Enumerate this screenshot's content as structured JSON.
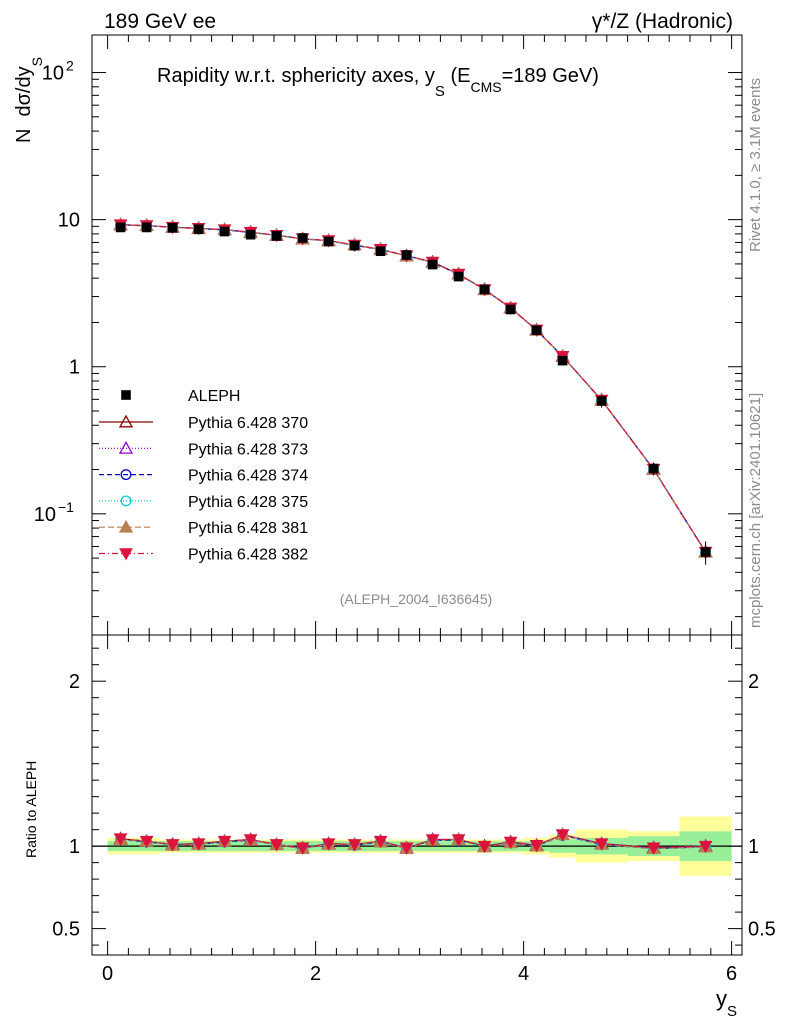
{
  "header": {
    "left": "189 GeV ee",
    "right": "γ*/Z (Hadronic)"
  },
  "side": {
    "rivet": "Rivet 4.1.0, ≥ 3.1M events",
    "site": "mcplots.cern.ch [arXiv:2401.10621]"
  },
  "chart_data": {
    "type": "line",
    "title": "Rapidity w.r.t. sphericity axes, y_S (E_CMS=189 GeV)",
    "title_parts": {
      "main": "Rapidity w.r.t. sphericity axes, y",
      "sub_s": "S",
      "open": " (E",
      "sub_cms": "CMS",
      "close": "=189 GeV)"
    },
    "watermark": "(ALEPH_2004_I636645)",
    "ylabel": {
      "n": "N",
      "main": "dσ/dy",
      "sub": "S"
    },
    "xlabel": {
      "main": "y",
      "sub": "S"
    },
    "ratio_ylabel": "Ratio to ALEPH",
    "yscale": "log",
    "xlim": [
      -0.15,
      6.1
    ],
    "ylim": [
      0.015,
      180
    ],
    "ratio_ylim": [
      0.34,
      2.28
    ],
    "x_ticks": [
      "0",
      "2",
      "4",
      "6"
    ],
    "y_ticks": [
      {
        "value": 100,
        "label": "10",
        "exp": "2"
      },
      {
        "value": 10,
        "label": "10",
        "exp": ""
      },
      {
        "value": 1,
        "label": "1",
        "exp": ""
      },
      {
        "value": 0.1,
        "label": "10",
        "exp": "−1"
      }
    ],
    "ratio_ticks": [
      {
        "value": 2,
        "label": "2"
      },
      {
        "value": 1,
        "label": "1"
      },
      {
        "value": 0.5,
        "label": "0.5"
      }
    ],
    "bin_edges": [
      0,
      0.25,
      0.5,
      0.75,
      1.0,
      1.25,
      1.5,
      1.75,
      2.0,
      2.25,
      2.5,
      2.75,
      3.0,
      3.25,
      3.5,
      3.75,
      4.0,
      4.25,
      4.5,
      5.0,
      5.5,
      6.0
    ],
    "x": [
      0.125,
      0.375,
      0.625,
      0.875,
      1.125,
      1.375,
      1.625,
      1.875,
      2.125,
      2.375,
      2.625,
      2.875,
      3.125,
      3.375,
      3.625,
      3.875,
      4.125,
      4.375,
      4.75,
      5.25,
      5.75
    ],
    "data": {
      "name": "ALEPH",
      "values": [
        8.85,
        8.85,
        8.8,
        8.6,
        8.3,
        7.9,
        7.75,
        7.5,
        7.1,
        6.65,
        6.1,
        5.75,
        4.95,
        4.1,
        3.35,
        2.45,
        1.77,
        1.1,
        0.585,
        0.203,
        0.055
      ],
      "stat_err": [
        0.03,
        0.03,
        0.03,
        0.03,
        0.03,
        0.03,
        0.03,
        0.03,
        0.03,
        0.03,
        0.03,
        0.03,
        0.03,
        0.03,
        0.03,
        0.03,
        0.03,
        0.04,
        0.05,
        0.06,
        0.09
      ],
      "total_err": [
        0.05,
        0.05,
        0.04,
        0.04,
        0.04,
        0.04,
        0.04,
        0.04,
        0.04,
        0.04,
        0.04,
        0.04,
        0.04,
        0.04,
        0.04,
        0.04,
        0.05,
        0.07,
        0.1,
        0.09,
        0.18
      ]
    },
    "series": [
      {
        "name": "Pythia 6.428 370",
        "color": "#8b0000",
        "marker": "triangle-open",
        "dash": "",
        "ratio": [
          1.045,
          1.03,
          1.01,
          1.015,
          1.03,
          1.04,
          1.01,
          0.985,
          1.015,
          1.01,
          1.03,
          0.985,
          1.04,
          1.04,
          1.0,
          1.025,
          1.005,
          1.07,
          1.015,
          0.99,
          1.0
        ]
      },
      {
        "name": "Pythia 6.428 373",
        "color": "#9400d3",
        "marker": "triangle-open",
        "dash": "1,2",
        "ratio": [
          1.04,
          1.03,
          1.01,
          1.015,
          1.03,
          1.04,
          1.01,
          0.99,
          1.015,
          1.01,
          1.03,
          0.99,
          1.04,
          1.04,
          1.0,
          1.025,
          1.005,
          1.07,
          1.015,
          0.99,
          1.0
        ]
      },
      {
        "name": "Pythia 6.428 374",
        "color": "#0000cd",
        "marker": "circle-open",
        "dash": "5,3",
        "ratio": [
          1.04,
          1.025,
          1.01,
          1.01,
          1.025,
          1.035,
          1.01,
          0.99,
          1.01,
          1.005,
          1.025,
          0.99,
          1.035,
          1.035,
          1.0,
          1.02,
          1.0,
          1.065,
          1.01,
          0.985,
          0.995
        ]
      },
      {
        "name": "Pythia 6.428 375",
        "color": "#00ced1",
        "marker": "circle-open",
        "dash": "1,2",
        "ratio": [
          1.04,
          1.025,
          1.01,
          1.01,
          1.025,
          1.035,
          1.01,
          0.99,
          1.01,
          1.005,
          1.025,
          0.99,
          1.035,
          1.035,
          1.0,
          1.02,
          1.0,
          1.065,
          1.01,
          0.985,
          0.995
        ]
      },
      {
        "name": "Pythia 6.428 381",
        "color": "#b8804f",
        "marker": "triangle-filled",
        "dash": "6,3",
        "ratio": [
          1.04,
          1.03,
          1.005,
          1.01,
          1.03,
          1.035,
          1.01,
          0.985,
          1.01,
          1.01,
          1.025,
          0.985,
          1.035,
          1.04,
          0.995,
          1.02,
          1.0,
          1.07,
          1.01,
          0.985,
          0.995
        ]
      },
      {
        "name": "Pythia 6.428 382",
        "color": "#dc143c",
        "marker": "triangle-down-filled",
        "dash": "6,3,1,3",
        "ratio": [
          1.045,
          1.03,
          1.01,
          1.015,
          1.03,
          1.04,
          1.01,
          0.99,
          1.015,
          1.01,
          1.03,
          0.99,
          1.04,
          1.04,
          1.0,
          1.025,
          1.005,
          1.07,
          1.015,
          0.99,
          1.0
        ]
      }
    ],
    "colors": {
      "band_total": "#ffff99",
      "band_stat": "#99ee99",
      "data": "#000000"
    }
  }
}
